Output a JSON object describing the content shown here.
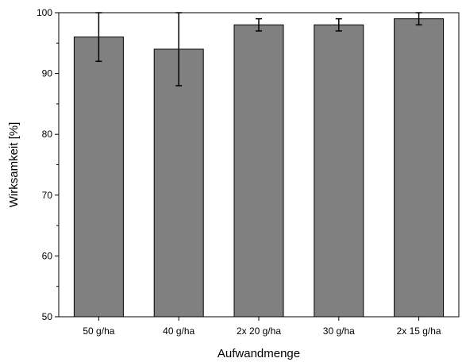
{
  "chart_data": {
    "type": "bar",
    "title": "",
    "xlabel": "Aufwandmenge",
    "ylabel": "Wirksamkeit [%]",
    "categories": [
      "50 g/ha",
      "40 g/ha",
      "2x 20 g/ha",
      "30 g/ha",
      "2x 15 g/ha"
    ],
    "values": [
      96,
      94,
      98,
      98,
      99
    ],
    "error_low": [
      92,
      88,
      97,
      97,
      98
    ],
    "error_high": [
      100,
      100,
      99,
      99,
      100
    ],
    "ylim": [
      50,
      100
    ],
    "yticks": [
      50,
      60,
      70,
      80,
      90,
      100
    ],
    "y_minor_step": 5,
    "grid": false,
    "colors": {
      "bar_fill": "#808080",
      "bar_stroke": "#000000",
      "axis": "#000000"
    }
  }
}
